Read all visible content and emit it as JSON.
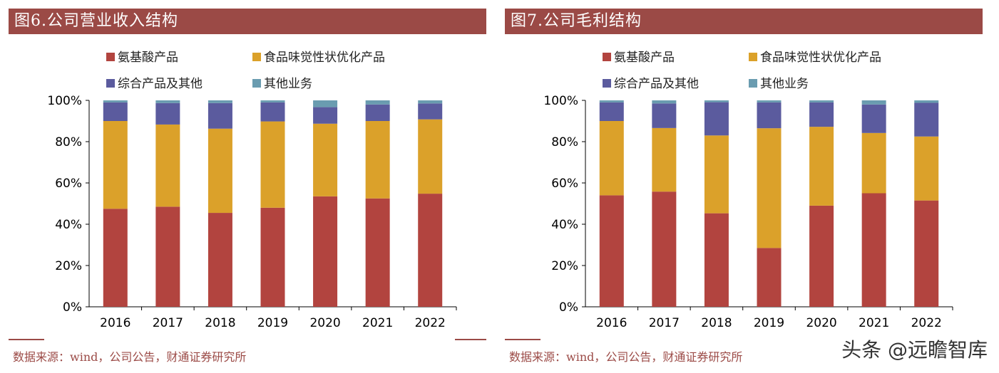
{
  "watermark": "头条 @远瞻智库",
  "chart_data": [
    {
      "type": "bar",
      "stacked": true,
      "title": "图6.公司营业收入结构",
      "source": "数据来源：wind，公司公告，财通证券研究所",
      "categories": [
        "2016",
        "2017",
        "2018",
        "2019",
        "2020",
        "2021",
        "2022"
      ],
      "ylim": [
        0,
        100
      ],
      "yticks": [
        "0%",
        "20%",
        "40%",
        "60%",
        "80%",
        "100%"
      ],
      "legend_position": "top",
      "series": [
        {
          "name": "氨基酸产品",
          "color": "#b2443f",
          "values": [
            47.5,
            48.5,
            45.5,
            48,
            53.5,
            52.5,
            54.8
          ]
        },
        {
          "name": "食品味觉性状优化产品",
          "color": "#dba12a",
          "values": [
            42.5,
            39.8,
            40.8,
            41.8,
            35.2,
            37.5,
            36
          ]
        },
        {
          "name": "综合产品及其他",
          "color": "#5b5b9e",
          "values": [
            9,
            10.4,
            12.4,
            9.2,
            8,
            8,
            7.7
          ]
        },
        {
          "name": "其他业务",
          "color": "#6a9cb0",
          "values": [
            1,
            1.3,
            1.3,
            1,
            3.3,
            2,
            1.5
          ]
        }
      ]
    },
    {
      "type": "bar",
      "stacked": true,
      "title": "图7.公司毛利结构",
      "source": "数据来源：wind，公司公告，财通证券研究所",
      "categories": [
        "2016",
        "2017",
        "2018",
        "2019",
        "2020",
        "2021",
        "2022"
      ],
      "ylim": [
        0,
        100
      ],
      "yticks": [
        "0%",
        "20%",
        "40%",
        "60%",
        "80%",
        "100%"
      ],
      "legend_position": "top",
      "series": [
        {
          "name": "氨基酸产品",
          "color": "#b2443f",
          "values": [
            54,
            55.8,
            45.3,
            28.5,
            49,
            55,
            51.5
          ]
        },
        {
          "name": "食品味觉性状优化产品",
          "color": "#dba12a",
          "values": [
            36,
            30.8,
            37.7,
            58,
            38.2,
            29.2,
            31
          ]
        },
        {
          "name": "综合产品及其他",
          "color": "#5b5b9e",
          "values": [
            9,
            11.9,
            16.1,
            12.5,
            11.8,
            13.8,
            16.3
          ]
        },
        {
          "name": "其他业务",
          "color": "#6a9cb0",
          "values": [
            1,
            1.5,
            0.9,
            1,
            1,
            2,
            1.2
          ]
        }
      ]
    }
  ]
}
